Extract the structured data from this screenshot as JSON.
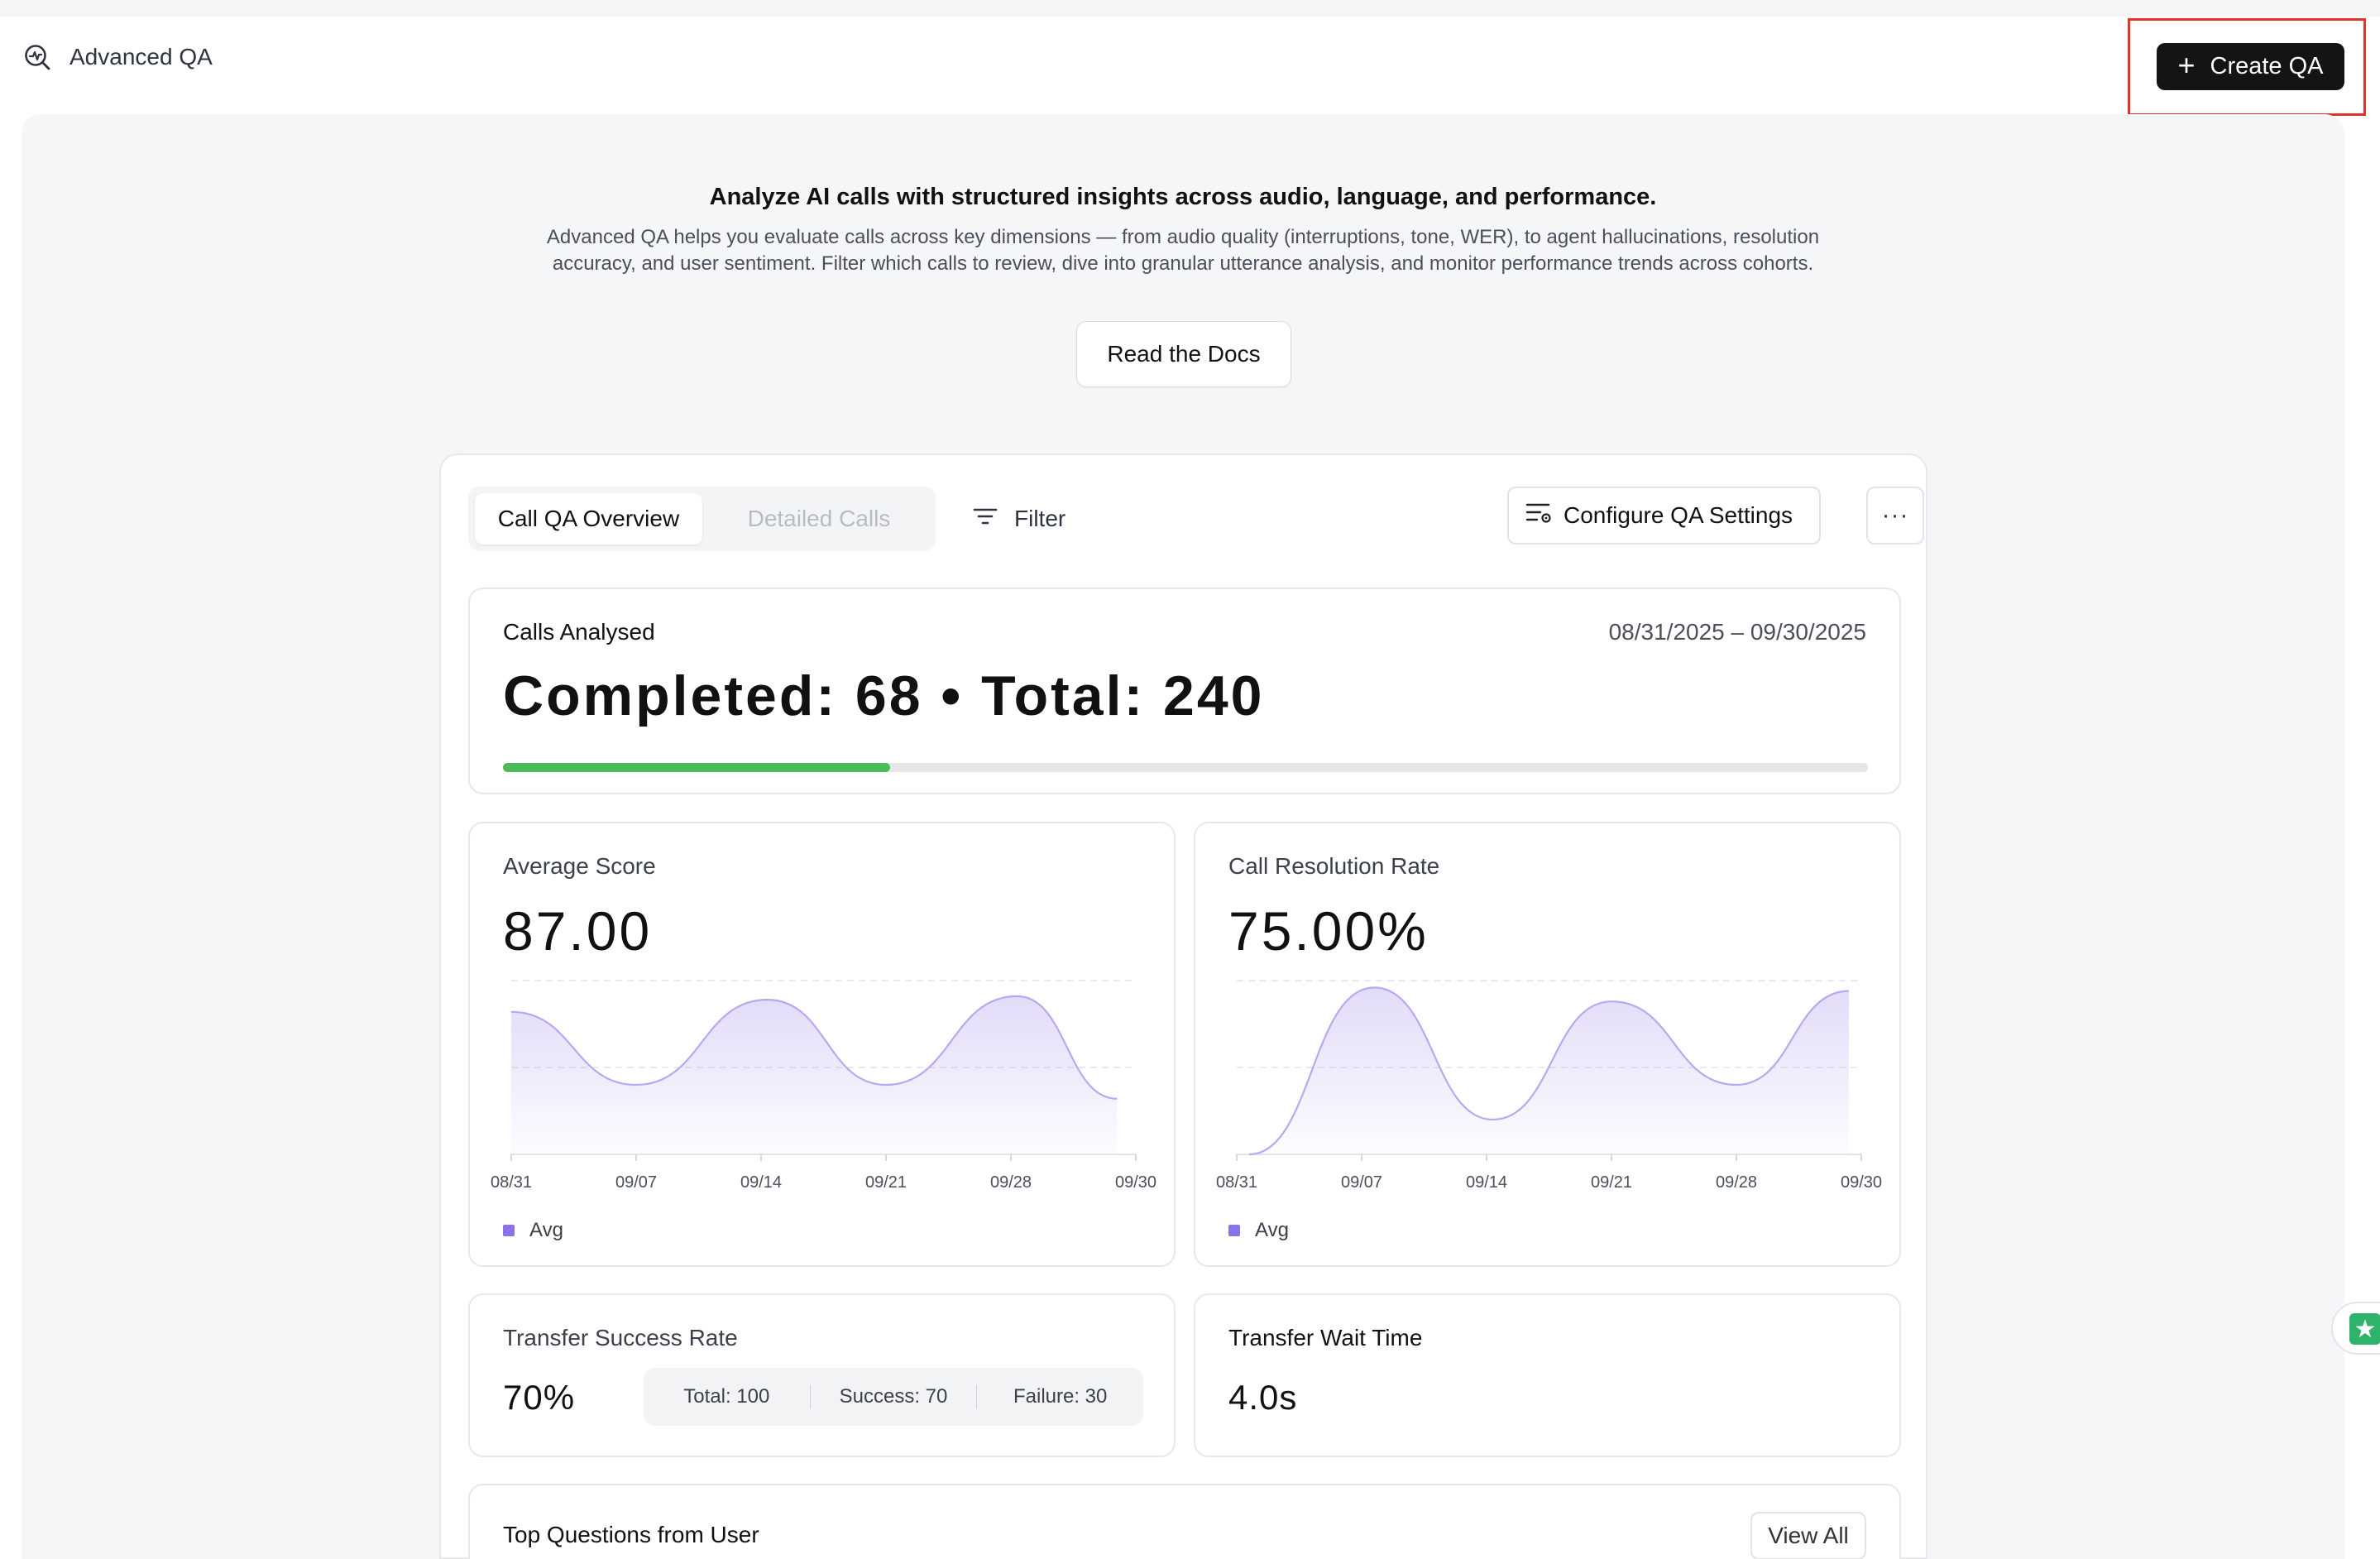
{
  "header": {
    "title": "Advanced QA",
    "create_button_label": "Create QA",
    "create_button_icon": "plus-icon",
    "brand_icon": "search-activity-icon"
  },
  "intro": {
    "headline": "Analyze AI calls with structured insights across audio, language, and performance.",
    "body": "Advanced QA helps you evaluate calls across key dimensions — from audio quality (interruptions, tone, WER), to agent hallucinations, resolution accuracy, and user sentiment. Filter which calls to review, dive into granular utterance analysis, and monitor performance trends across cohorts.",
    "docs_button": "Read the Docs"
  },
  "toolbar": {
    "tabs": [
      {
        "label": "Call QA Overview",
        "active": true
      },
      {
        "label": "Detailed Calls",
        "active": false
      }
    ],
    "filter_label": "Filter",
    "configure_label": "Configure QA Settings",
    "more_label": "···"
  },
  "calls": {
    "label": "Calls Analysed",
    "date_range": "08/31/2025 – 09/30/2025",
    "summary": "Completed: 68 • Total: 240",
    "completed": 68,
    "total": 240,
    "progress_color": "#4cbb5a"
  },
  "average_score": {
    "label": "Average Score",
    "value": "87.00",
    "legend": "Avg"
  },
  "resolution_rate": {
    "label": "Call Resolution Rate",
    "value": "75.00%",
    "legend": "Avg"
  },
  "transfer_success": {
    "label": "Transfer Success Rate",
    "value": "70%",
    "total": "Total: 100",
    "success": "Success: 70",
    "failure": "Failure: 30"
  },
  "transfer_wait": {
    "label": "Transfer Wait Time",
    "value": "4.0s"
  },
  "top_questions": {
    "label": "Top Questions from User",
    "view_all": "View All"
  },
  "colors": {
    "chart_line": "#b9a8f0",
    "chart_fill": "#8b72e6",
    "legend": "#8b72e6",
    "primary_button": "#141414",
    "highlight_border": "#e2332a"
  },
  "chart_data": [
    {
      "type": "area",
      "x": [
        "08/31",
        "09/07",
        "09/14",
        "09/21",
        "09/28",
        "09/30"
      ],
      "xticks": [
        "08/31",
        "09/07",
        "09/14",
        "09/21",
        "09/28",
        "09/30"
      ],
      "series": [
        {
          "name": "Avg",
          "points": [
            {
              "t": 0,
              "v": 0.82
            },
            {
              "t": 0.2,
              "v": 0.4
            },
            {
              "t": 0.41,
              "v": 0.89
            },
            {
              "t": 0.6,
              "v": 0.4
            },
            {
              "t": 0.81,
              "v": 0.91
            },
            {
              "t": 0.97,
              "v": 0.32
            }
          ]
        }
      ],
      "grid": true,
      "legend": "bottom-left"
    },
    {
      "type": "area",
      "x": [
        "08/31",
        "09/07",
        "09/14",
        "09/21",
        "09/28",
        "09/30"
      ],
      "xticks": [
        "08/31",
        "09/07",
        "09/14",
        "09/21",
        "09/28",
        "09/30"
      ],
      "series": [
        {
          "name": "Avg",
          "points": [
            {
              "t": 0.02,
              "v": 0.0
            },
            {
              "t": 0.22,
              "v": 0.96
            },
            {
              "t": 0.41,
              "v": 0.2
            },
            {
              "t": 0.6,
              "v": 0.88
            },
            {
              "t": 0.8,
              "v": 0.4
            },
            {
              "t": 0.98,
              "v": 0.94
            }
          ]
        }
      ],
      "grid": true,
      "legend": "bottom-left"
    }
  ]
}
